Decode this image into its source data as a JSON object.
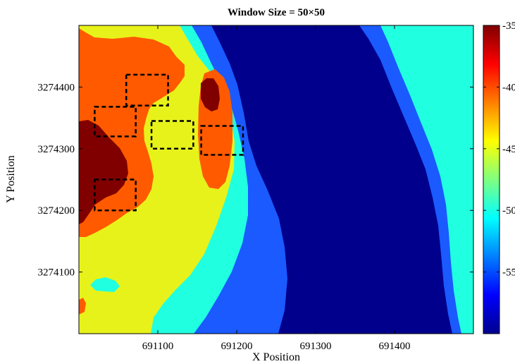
{
  "chart_data": {
    "type": "heatmap",
    "title": "Window Size = 50×50",
    "xlabel": "X Position",
    "ylabel": "Y Position",
    "xlim": [
      691000,
      691500
    ],
    "ylim": [
      3274000,
      3274500
    ],
    "x_ticks": [
      {
        "value": 691100,
        "label": "691100"
      },
      {
        "value": 691200,
        "label": "691200"
      },
      {
        "value": 691300,
        "label": "691300"
      },
      {
        "value": 691400,
        "label": "691400"
      }
    ],
    "y_ticks": [
      {
        "value": 3274100,
        "label": "3274100"
      },
      {
        "value": 3274200,
        "label": "3274200"
      },
      {
        "value": 3274300,
        "label": "3274300"
      },
      {
        "value": 3274400,
        "label": "3274400"
      }
    ],
    "colorbar": {
      "colormap": "jet",
      "range": [
        -60,
        -35
      ],
      "ticks": [
        {
          "value": -35,
          "label": "-35"
        },
        {
          "value": -40,
          "label": "-40"
        },
        {
          "value": -45,
          "label": "-45"
        },
        {
          "value": -50,
          "label": "-50"
        },
        {
          "value": -55,
          "label": "-55"
        }
      ]
    },
    "contour_levels": [
      {
        "level": -37,
        "color": "#800000"
      },
      {
        "level": -42,
        "color": "#ff5a00"
      },
      {
        "level": -46,
        "color": "#e7f21a"
      },
      {
        "level": -51,
        "color": "#20ffe0"
      },
      {
        "level": -55,
        "color": "#1a5aff"
      },
      {
        "level": -58,
        "color": "#00008c"
      }
    ],
    "windows": [
      {
        "x": [
          691060,
          691113
        ],
        "y": [
          3274370,
          3274420
        ]
      },
      {
        "x": [
          691020,
          691072
        ],
        "y": [
          3274320,
          3274368
        ]
      },
      {
        "x": [
          691092,
          691145
        ],
        "y": [
          3274300,
          3274345
        ]
      },
      {
        "x": [
          691155,
          691208
        ],
        "y": [
          3274290,
          3274337
        ]
      },
      {
        "x": [
          691020,
          691072
        ],
        "y": [
          3274200,
          3274250
        ]
      }
    ]
  }
}
